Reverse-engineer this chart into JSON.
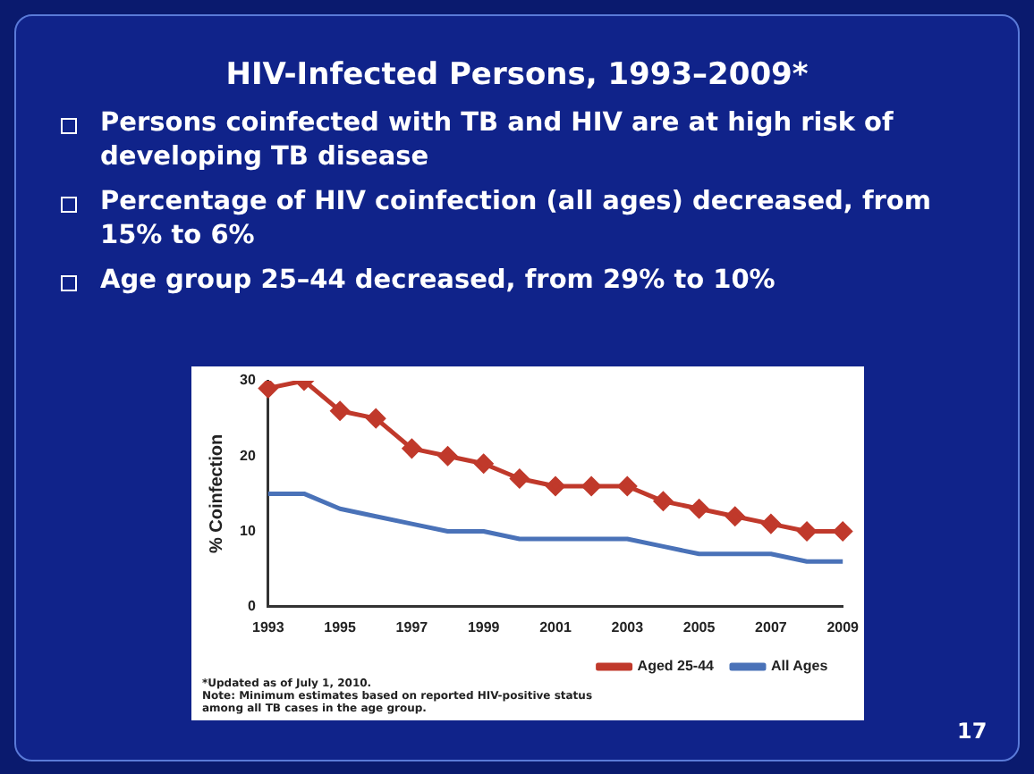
{
  "chart_data": {
    "type": "line",
    "title": "HIV-Infected Persons, 1993–2009*",
    "subtitle": [
      "Persons coinfected with TB and HIV are at high risk of developing TB disease",
      "Percentage of HIV coinfection (all ages) decreased, from 15% to 6%",
      "Age group 25–44 decreased, from 29% to 10%"
    ],
    "ylabel": "% Coinfection",
    "categories": [
      "1993",
      null,
      "1995",
      null,
      "1997",
      null,
      "1999",
      null,
      "2001",
      null,
      "2003",
      null,
      "2005",
      null,
      "2007",
      null,
      "2009"
    ],
    "series": [
      {
        "name": "Aged 25-44",
        "color": "#c0392b",
        "marker": "diamond",
        "values": [
          29,
          30,
          26,
          25,
          21,
          20,
          19,
          17,
          16,
          16,
          16,
          14,
          13,
          12,
          11,
          10,
          10
        ]
      },
      {
        "name": "All Ages",
        "color": "#4a72b8",
        "marker": "none",
        "values": [
          15,
          15,
          13,
          12,
          11,
          10,
          10,
          9,
          9,
          9,
          9,
          8,
          7,
          7,
          7,
          6,
          6
        ]
      }
    ],
    "ylim": [
      0,
      30
    ],
    "yticks": [
      0,
      10,
      20,
      30
    ],
    "grid": false,
    "legend": "bottom right",
    "annotations": [
      "*Updated as of  July 1, 2010.",
      "Note: Minimum estimates based on reported HIV-positive status among all TB cases in the age group.",
      "17"
    ]
  }
}
